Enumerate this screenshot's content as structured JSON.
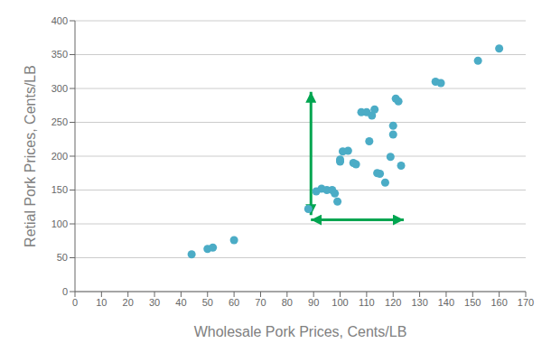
{
  "chart_data": {
    "type": "scatter",
    "xlabel": "Wholesale Pork Prices, Cents/LB",
    "ylabel": "Retial Pork Prices, Cents/LB",
    "x": [
      44,
      50,
      52,
      60,
      88,
      91,
      93,
      95,
      97,
      98,
      99,
      100,
      100,
      101,
      103,
      105,
      106,
      108,
      110,
      111,
      112,
      113,
      114,
      115,
      117,
      119,
      120,
      120,
      121,
      122,
      123,
      136,
      138,
      152,
      160
    ],
    "values": [
      55,
      63,
      65,
      76,
      122,
      148,
      152,
      150,
      150,
      145,
      133,
      192,
      195,
      207,
      208,
      190,
      188,
      265,
      265,
      222,
      260,
      269,
      175,
      174,
      161,
      199,
      245,
      232,
      285,
      281,
      186,
      310,
      308,
      341,
      359
    ],
    "color": "#4bacc6",
    "xlim": [
      0,
      170
    ],
    "ylim": [
      0,
      400
    ],
    "xticks": [
      0,
      10,
      20,
      30,
      40,
      50,
      60,
      70,
      80,
      90,
      100,
      110,
      120,
      130,
      140,
      150,
      160,
      170
    ],
    "yticks": [
      0,
      50,
      100,
      150,
      200,
      250,
      300,
      350,
      400
    ],
    "grid": true,
    "annotations": [
      {
        "type": "arrow",
        "x": [
          89,
          89
        ],
        "y": [
          113,
          295
        ],
        "color": "#00a550"
      },
      {
        "type": "arrow",
        "x": [
          89,
          124
        ],
        "y": [
          106,
          106
        ],
        "color": "#00a550"
      }
    ]
  }
}
